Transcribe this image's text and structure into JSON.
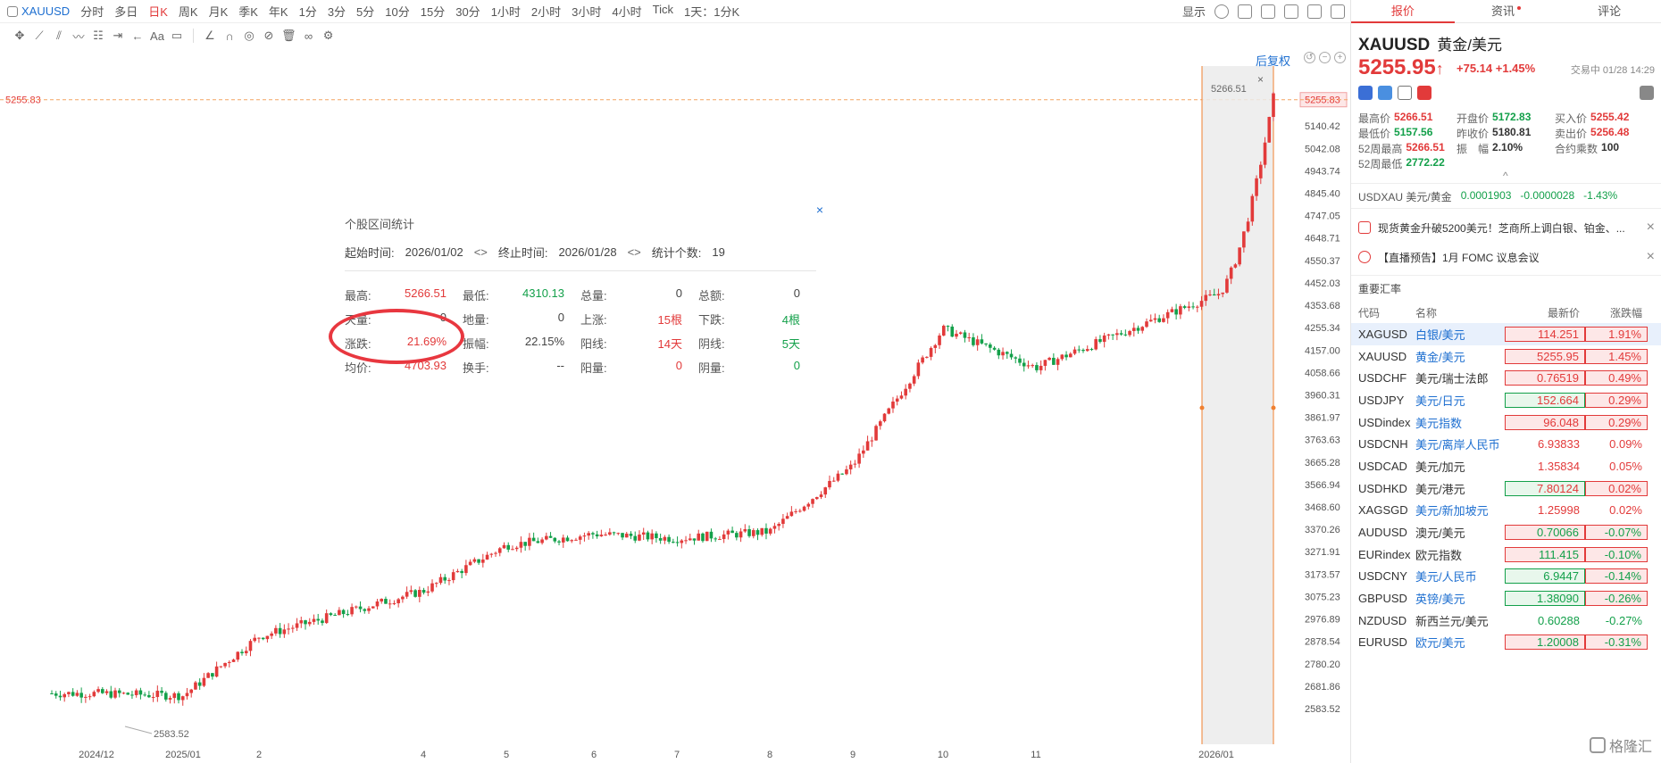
{
  "top": {
    "symbol": "XAUUSD",
    "periods": [
      "分时",
      "多日",
      "日K",
      "周K",
      "月K",
      "季K",
      "年K",
      "1分",
      "3分",
      "5分",
      "10分",
      "15分",
      "30分",
      "1小时",
      "2小时",
      "3小时",
      "4小时",
      "Tick",
      "1天：1分K"
    ],
    "active_period": "日K",
    "display_label": "显示"
  },
  "chart": {
    "restore_label": "后复权",
    "current_price_label": "5255.83",
    "high_label": "5266.51",
    "low_label": "2583.52",
    "y_ticks": [
      "5255.83",
      "5140.42",
      "5042.08",
      "4943.74",
      "4845.40",
      "4747.05",
      "4648.71",
      "4550.37",
      "4452.03",
      "4353.68",
      "4255.34",
      "4157.00",
      "4058.66",
      "3960.31",
      "3861.97",
      "3763.63",
      "3665.28",
      "3566.94",
      "3468.60",
      "3370.26",
      "3271.91",
      "3173.57",
      "3075.23",
      "2976.89",
      "2878.54",
      "2780.20",
      "2681.86",
      "2583.52"
    ],
    "x_labels": [
      "2024/12",
      "2025/01",
      "2",
      "4",
      "5",
      "6",
      "7",
      "8",
      "9",
      "10",
      "11",
      "2026/01"
    ],
    "colors": {
      "up": "#e23a3a",
      "down": "#13a04a",
      "highlight": "#f08030"
    }
  },
  "chart_data": {
    "type": "candlestick",
    "ylim": [
      2583.52,
      5266.51
    ],
    "anchors": [
      {
        "t": "2024/12",
        "price": 2650
      },
      {
        "t": "2025/01",
        "price": 2640
      },
      {
        "t": "2",
        "price": 2900
      },
      {
        "t": "4",
        "price": 3100
      },
      {
        "t": "5",
        "price": 3300
      },
      {
        "t": "6",
        "price": 3350
      },
      {
        "t": "7",
        "price": 3330
      },
      {
        "t": "8",
        "price": 3360
      },
      {
        "t": "9",
        "price": 3650
      },
      {
        "t": "10",
        "price": 4250
      },
      {
        "t": "11",
        "price": 4080
      },
      {
        "t": "2026/01",
        "price": 4400
      }
    ]
  },
  "stats": {
    "title": "个股区间统计",
    "start_label": "起始时间:",
    "start": "2026/01/02",
    "end_label": "终止时间:",
    "end": "2026/01/28",
    "count_label": "统计个数:",
    "count": "19",
    "rows": [
      [
        {
          "k": "最高:",
          "v": "5266.51",
          "c": "red"
        },
        {
          "k": "最低:",
          "v": "4310.13",
          "c": "green"
        },
        {
          "k": "总量:",
          "v": "0",
          "c": ""
        },
        {
          "k": "总额:",
          "v": "0",
          "c": ""
        }
      ],
      [
        {
          "k": "天量:",
          "v": "0",
          "c": ""
        },
        {
          "k": "地量:",
          "v": "0",
          "c": ""
        },
        {
          "k": "上涨:",
          "v": "15根",
          "c": "red"
        },
        {
          "k": "下跌:",
          "v": "4根",
          "c": "green"
        }
      ],
      [
        {
          "k": "涨跌:",
          "v": "21.69%",
          "c": "red"
        },
        {
          "k": "振幅:",
          "v": "22.15%",
          "c": ""
        },
        {
          "k": "阳线:",
          "v": "14天",
          "c": "red"
        },
        {
          "k": "阴线:",
          "v": "5天",
          "c": "green"
        }
      ],
      [
        {
          "k": "均价:",
          "v": "4703.93",
          "c": "red"
        },
        {
          "k": "换手:",
          "v": "--",
          "c": ""
        },
        {
          "k": "阳量:",
          "v": "0",
          "c": "red"
        },
        {
          "k": "阴量:",
          "v": "0",
          "c": "green"
        }
      ]
    ]
  },
  "panel": {
    "tabs": [
      "报价",
      "资讯",
      "评论"
    ],
    "symbol": "XAUUSD",
    "name_cn": "黄金/美元",
    "price": "5255.95",
    "arrow": "↑",
    "change": "+75.14",
    "change_pct": "+1.45%",
    "status_time": "交易中 01/28 14:29",
    "quote_rows": [
      [
        {
          "k": "最高价",
          "v": "5266.51",
          "c": "red"
        },
        {
          "k": "开盘价",
          "v": "5172.83",
          "c": "green"
        },
        {
          "k": "买入价",
          "v": "5255.42",
          "c": "red"
        }
      ],
      [
        {
          "k": "最低价",
          "v": "5157.56",
          "c": "green"
        },
        {
          "k": "昨收价",
          "v": "5180.81",
          "c": ""
        },
        {
          "k": "卖出价",
          "v": "5256.48",
          "c": "red"
        }
      ],
      [
        {
          "k": "52周最高",
          "v": "5266.51",
          "c": "red"
        },
        {
          "k": "振　幅",
          "v": "2.10%",
          "c": ""
        },
        {
          "k": "合约乘数",
          "v": "100",
          "c": ""
        }
      ],
      [
        {
          "k": "52周最低",
          "v": "2772.22",
          "c": "green"
        }
      ]
    ],
    "usdxau": {
      "label": "USDXAU 美元/黄金",
      "price": "0.0001903",
      "change": "-0.0000028",
      "pct": "-1.43%"
    },
    "news": [
      "现货黄金升破5200美元！芝商所上调白银、铂金、...",
      "【直播预告】1月 FOMC 议息会议"
    ],
    "fx_title": "重要汇率",
    "fx_headers": [
      "代码",
      "名称",
      "最新价",
      "涨跌幅"
    ],
    "fx_rows": [
      {
        "code": "XAGUSD",
        "name": "白银/美元",
        "price": "114.251",
        "pct": "1.91%",
        "dir": "up",
        "box": true,
        "link": true,
        "sel": true
      },
      {
        "code": "XAUUSD",
        "name": "黄金/美元",
        "price": "5255.95",
        "pct": "1.45%",
        "dir": "up",
        "box": true,
        "link": true,
        "sel": false
      },
      {
        "code": "USDCHF",
        "name": "美元/瑞士法郎",
        "price": "0.76519",
        "pct": "0.49%",
        "dir": "up",
        "box": true,
        "link": false,
        "sel": false
      },
      {
        "code": "USDJPY",
        "name": "美元/日元",
        "price": "152.664",
        "pct": "0.29%",
        "dir": "up",
        "box": "green",
        "link": true,
        "sel": false
      },
      {
        "code": "USDindex",
        "name": "美元指数",
        "price": "96.048",
        "pct": "0.29%",
        "dir": "up",
        "box": true,
        "link": true,
        "sel": false
      },
      {
        "code": "USDCNH",
        "name": "美元/离岸人民币",
        "price": "6.93833",
        "pct": "0.09%",
        "dir": "up",
        "box": false,
        "link": true,
        "sel": false
      },
      {
        "code": "USDCAD",
        "name": "美元/加元",
        "price": "1.35834",
        "pct": "0.05%",
        "dir": "up",
        "box": false,
        "link": false,
        "sel": false
      },
      {
        "code": "USDHKD",
        "name": "美元/港元",
        "price": "7.80124",
        "pct": "0.02%",
        "dir": "up",
        "box": "green",
        "link": false,
        "sel": false
      },
      {
        "code": "XAGSGD",
        "name": "美元/新加坡元",
        "price": "1.25998",
        "pct": "0.02%",
        "dir": "up",
        "box": false,
        "link": true,
        "sel": false
      },
      {
        "code": "AUDUSD",
        "name": "澳元/美元",
        "price": "0.70066",
        "pct": "-0.07%",
        "dir": "down",
        "box": true,
        "link": false,
        "sel": false
      },
      {
        "code": "EURindex",
        "name": "欧元指数",
        "price": "111.415",
        "pct": "-0.10%",
        "dir": "down",
        "box": true,
        "link": false,
        "sel": false
      },
      {
        "code": "USDCNY",
        "name": "美元/人民币",
        "price": "6.9447",
        "pct": "-0.14%",
        "dir": "down",
        "box": "green",
        "link": true,
        "sel": false
      },
      {
        "code": "GBPUSD",
        "name": "英镑/美元",
        "price": "1.38090",
        "pct": "-0.26%",
        "dir": "down",
        "box": "green",
        "link": true,
        "sel": false
      },
      {
        "code": "NZDUSD",
        "name": "新西兰元/美元",
        "price": "0.60288",
        "pct": "-0.27%",
        "dir": "down",
        "box": false,
        "link": false,
        "sel": false
      },
      {
        "code": "EURUSD",
        "name": "欧元/美元",
        "price": "1.20008",
        "pct": "-0.31%",
        "dir": "down",
        "box": true,
        "link": true,
        "sel": false
      }
    ],
    "logo": "格隆汇"
  }
}
